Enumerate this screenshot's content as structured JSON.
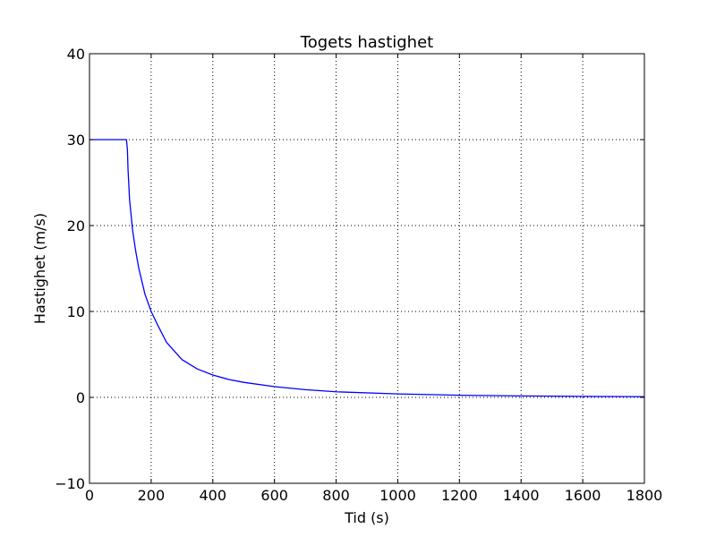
{
  "chart_data": {
    "type": "line",
    "title": "Togets hastighet",
    "xlabel": "Tid (s)",
    "ylabel": "Hastighet (m/s)",
    "xlim": [
      0,
      1800
    ],
    "ylim": [
      -10,
      40
    ],
    "x_ticks": [
      0,
      200,
      400,
      600,
      800,
      1000,
      1200,
      1400,
      1600,
      1800
    ],
    "y_ticks": [
      -10,
      0,
      10,
      20,
      30,
      40
    ],
    "x_tick_labels": [
      "0",
      "200",
      "400",
      "600",
      "800",
      "1000",
      "1200",
      "1400",
      "1600",
      "1800"
    ],
    "y_tick_labels": [
      "−10",
      "0",
      "10",
      "20",
      "30",
      "40"
    ],
    "grid": true,
    "series": [
      {
        "color": "#0000ff",
        "x": [
          0,
          40,
          80,
          120,
          123,
          125,
          130,
          140,
          150,
          160,
          180,
          200,
          220,
          250,
          300,
          350,
          400,
          450,
          500,
          600,
          700,
          800,
          1000,
          1200,
          1400,
          1600,
          1800
        ],
        "y": [
          30,
          30,
          30,
          30,
          28.8,
          26.5,
          23.0,
          19.4,
          17.0,
          15.0,
          12.0,
          10.0,
          8.5,
          6.4,
          4.4,
          3.3,
          2.6,
          2.1,
          1.75,
          1.25,
          0.9,
          0.65,
          0.4,
          0.25,
          0.17,
          0.12,
          0.08
        ]
      }
    ]
  }
}
